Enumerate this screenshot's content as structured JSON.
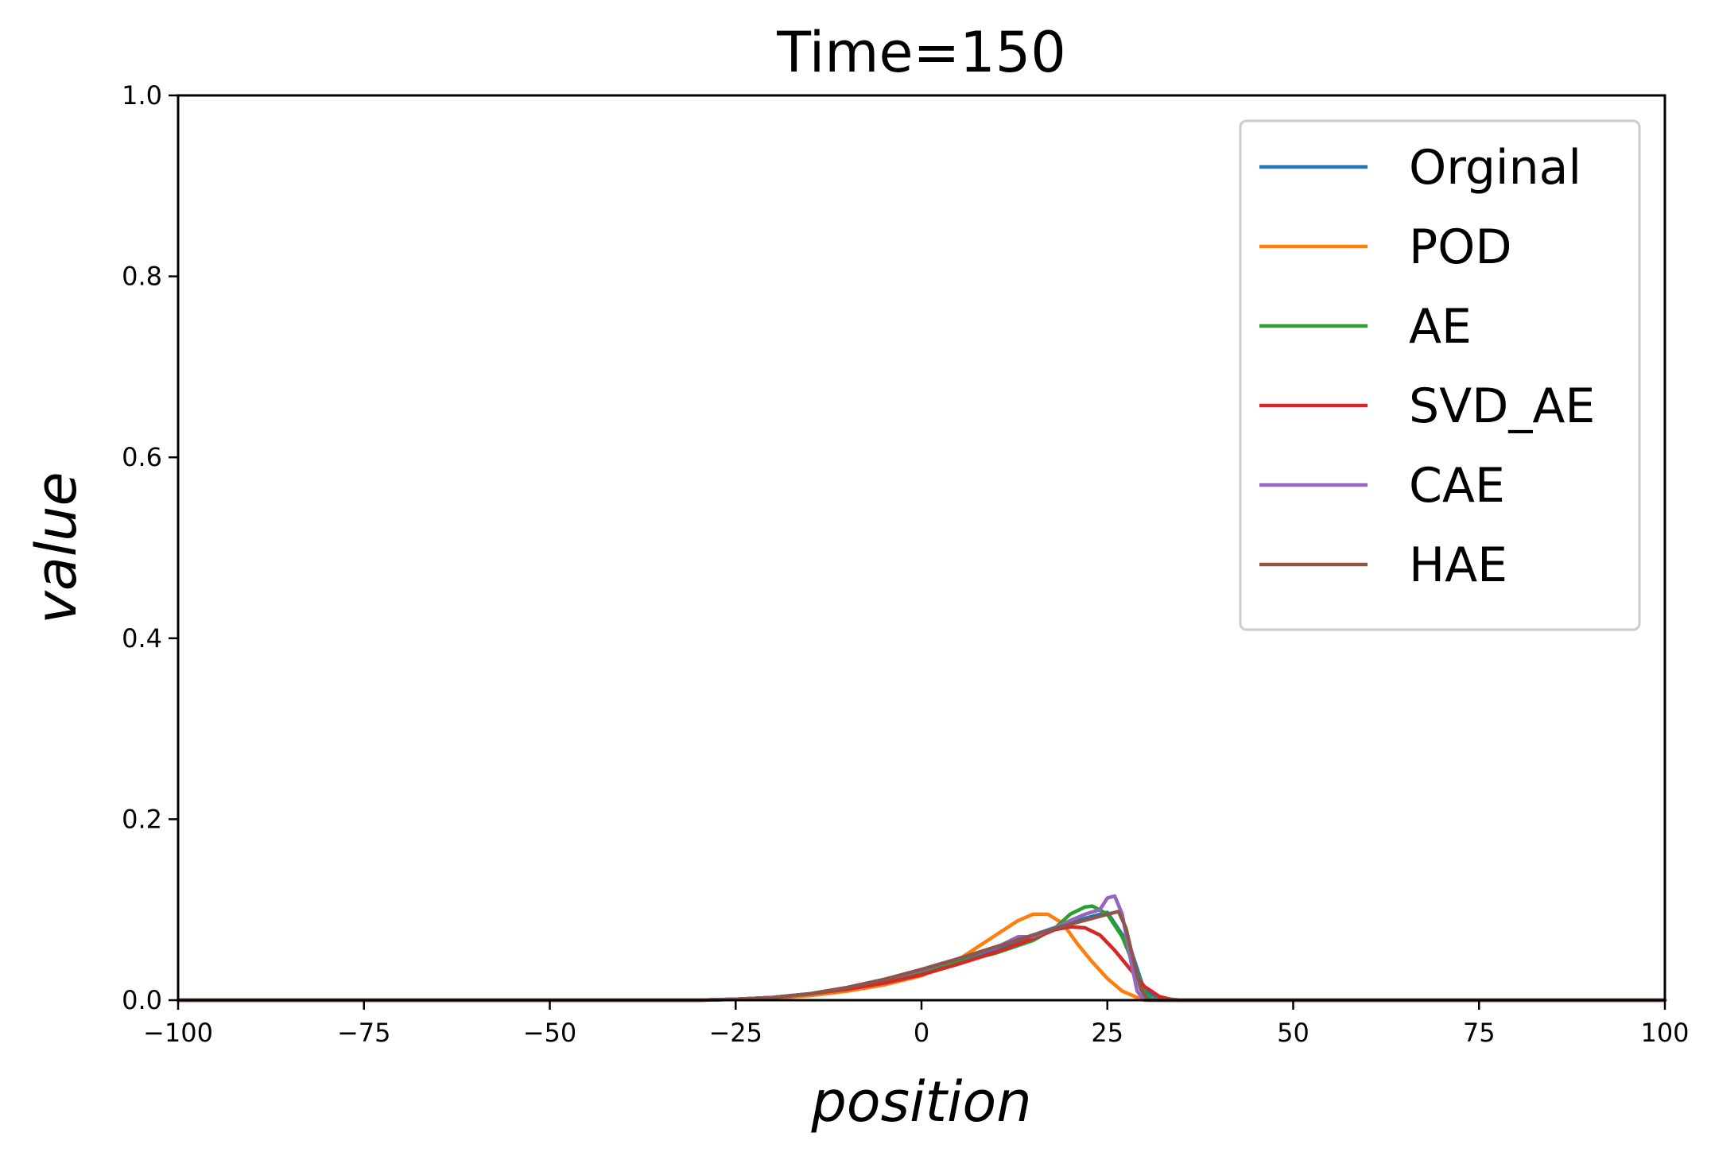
{
  "chart_data": {
    "type": "line",
    "title": "Time=150",
    "xlabel": "position",
    "ylabel": "value",
    "xlim": [
      -100,
      100
    ],
    "ylim": [
      0,
      1.0
    ],
    "x_ticks": [
      -100,
      -75,
      -50,
      -25,
      0,
      25,
      50,
      75,
      100
    ],
    "x_tick_labels": [
      "−100",
      "−75",
      "−50",
      "−25",
      "0",
      "25",
      "50",
      "75",
      "100"
    ],
    "y_ticks": [
      0.0,
      0.2,
      0.4,
      0.6,
      0.8,
      1.0
    ],
    "y_tick_labels": [
      "0.0",
      "0.2",
      "0.4",
      "0.6",
      "0.8",
      "1.0"
    ],
    "grid": false,
    "legend_position": "top-right",
    "series": [
      {
        "name": "Orginal",
        "color": "#1f77b4",
        "x": [
          -100,
          -30,
          -25,
          -20,
          -15,
          -10,
          -5,
          0,
          5,
          10,
          15,
          20,
          25,
          28,
          30,
          32,
          35,
          100
        ],
        "y": [
          0,
          0,
          0.001,
          0.003,
          0.007,
          0.013,
          0.021,
          0.03,
          0.042,
          0.056,
          0.072,
          0.086,
          0.097,
          0.06,
          0.01,
          0.002,
          0,
          0
        ]
      },
      {
        "name": "POD",
        "color": "#ff7f0e",
        "x": [
          -100,
          -30,
          -25,
          -20,
          -15,
          -10,
          -5,
          0,
          5,
          10,
          13,
          15,
          17,
          19,
          21,
          23,
          25,
          27,
          29,
          31,
          33,
          35,
          100
        ],
        "y": [
          0,
          0,
          0.001,
          0.002,
          0.005,
          0.01,
          0.017,
          0.027,
          0.045,
          0.072,
          0.088,
          0.095,
          0.095,
          0.085,
          0.062,
          0.042,
          0.024,
          0.01,
          0.003,
          0.001,
          0,
          0,
          0
        ]
      },
      {
        "name": "AE",
        "color": "#2ca02c",
        "x": [
          -100,
          -30,
          -25,
          -20,
          -15,
          -10,
          -5,
          0,
          5,
          10,
          15,
          18,
          20,
          22,
          23,
          25,
          27,
          29,
          30,
          31,
          33,
          100
        ],
        "y": [
          0,
          0,
          0.001,
          0.003,
          0.007,
          0.013,
          0.021,
          0.03,
          0.042,
          0.052,
          0.066,
          0.08,
          0.095,
          0.103,
          0.104,
          0.095,
          0.07,
          0.03,
          0.008,
          0.001,
          0,
          0
        ]
      },
      {
        "name": "SVD_AE",
        "color": "#d62728",
        "x": [
          -100,
          -30,
          -25,
          -20,
          -15,
          -10,
          -5,
          0,
          5,
          10,
          15,
          18,
          20,
          22,
          24,
          26,
          28,
          30,
          32,
          34,
          100
        ],
        "y": [
          0,
          0,
          0.001,
          0.003,
          0.007,
          0.012,
          0.019,
          0.028,
          0.04,
          0.053,
          0.068,
          0.078,
          0.081,
          0.08,
          0.072,
          0.055,
          0.035,
          0.015,
          0.004,
          0,
          0
        ]
      },
      {
        "name": "CAE",
        "color": "#9467bd",
        "x": [
          -100,
          -30,
          -25,
          -20,
          -15,
          -10,
          -5,
          0,
          5,
          10,
          13,
          15,
          18,
          20,
          22,
          24,
          25,
          26,
          27,
          28,
          29,
          30,
          100
        ],
        "y": [
          0,
          0,
          0.001,
          0.003,
          0.007,
          0.014,
          0.023,
          0.033,
          0.046,
          0.058,
          0.07,
          0.07,
          0.08,
          0.088,
          0.095,
          0.1,
          0.113,
          0.115,
          0.095,
          0.05,
          0.01,
          0,
          0
        ]
      },
      {
        "name": "HAE",
        "color": "#8c564b",
        "x": [
          -100,
          -30,
          -25,
          -20,
          -15,
          -10,
          -5,
          0,
          5,
          10,
          15,
          20,
          25,
          26.5,
          27.5,
          28.5,
          29.5,
          30.5,
          100
        ],
        "y": [
          0,
          0,
          0.001,
          0.003,
          0.007,
          0.014,
          0.023,
          0.034,
          0.046,
          0.059,
          0.072,
          0.084,
          0.095,
          0.098,
          0.08,
          0.045,
          0.012,
          0,
          0
        ]
      }
    ]
  }
}
